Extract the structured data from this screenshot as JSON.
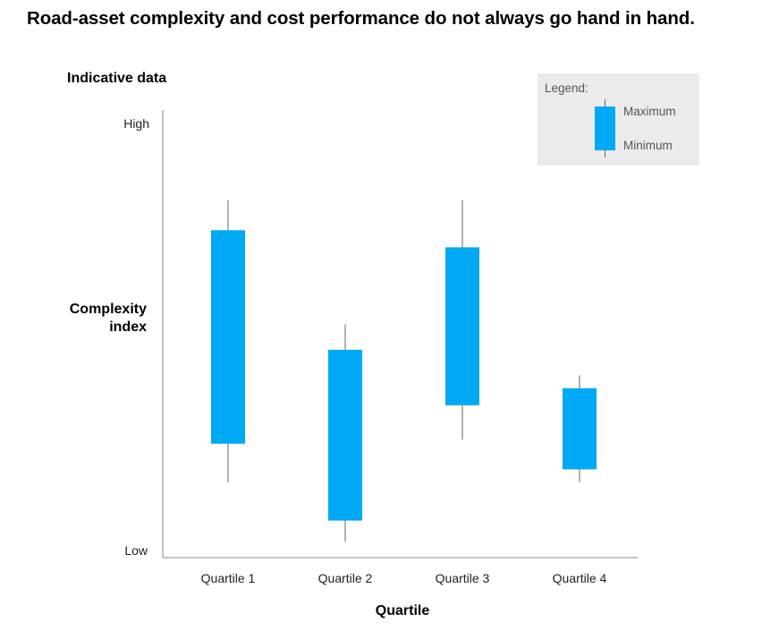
{
  "title": "Road-asset complexity and cost performance do not always go hand in hand.",
  "chart_data": {
    "type": "candlestick",
    "title": "Road-asset complexity and cost performance do not always go hand in hand.",
    "subtitle": "Indicative data",
    "xlabel": "Quartile",
    "ylabel_lines": [
      "Complexity",
      "index"
    ],
    "yticks": {
      "high": "High",
      "low": "Low"
    },
    "ylim": [
      0,
      100
    ],
    "categories": [
      "Quartile 1",
      "Quartile 2",
      "Quartile 3",
      "Quartile 4"
    ],
    "boxes": [
      {
        "category": "Quartile 1",
        "whisker_high": 82,
        "maximum": 75,
        "minimum": 25,
        "whisker_low": 16
      },
      {
        "category": "Quartile 2",
        "whisker_high": 53,
        "maximum": 47,
        "minimum": 7,
        "whisker_low": 2
      },
      {
        "category": "Quartile 3",
        "whisker_high": 82,
        "maximum": 71,
        "minimum": 34,
        "whisker_low": 26
      },
      {
        "category": "Quartile 4",
        "whisker_high": 41,
        "maximum": 38,
        "minimum": 19,
        "whisker_low": 16
      }
    ],
    "colors": {
      "box": "#00a9f4",
      "whisker": "#666666",
      "axis": "#888888"
    },
    "legend": {
      "position": "top-right",
      "title": "Legend:",
      "maximum_label": "Maximum",
      "minimum_label": "Minimum"
    },
    "grid": false
  }
}
